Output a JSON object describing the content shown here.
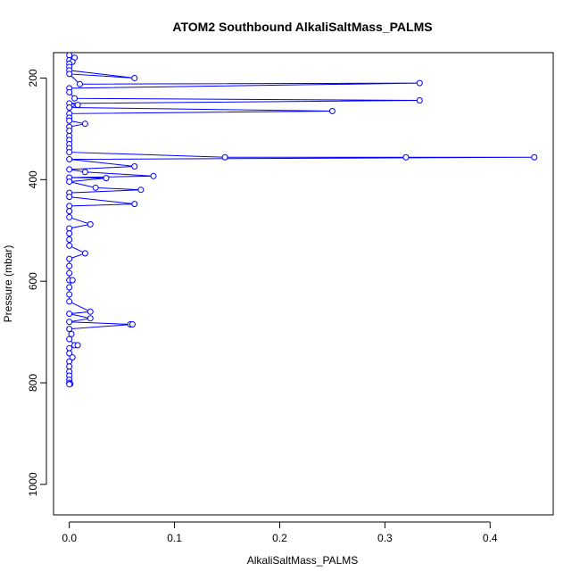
{
  "chart_data": {
    "type": "scatter",
    "title": "ATOM2 Southbound AlkaliSaltMass_PALMS",
    "xlabel": "AlkaliSaltMass_PALMS",
    "ylabel": "Pressure (mbar)",
    "xlim": [
      -0.015,
      0.46
    ],
    "ylim": [
      1060,
      150
    ],
    "y_inverted": true,
    "xticks": [
      0.0,
      0.1,
      0.2,
      0.3,
      0.4
    ],
    "xtick_labels": [
      "0.0",
      "0.1",
      "0.2",
      "0.3",
      "0.4"
    ],
    "yticks": [
      200,
      400,
      600,
      800,
      1000
    ],
    "ytick_labels": [
      "200",
      "400",
      "600",
      "800",
      "1000"
    ],
    "grid": false,
    "legend": "none",
    "series": [
      {
        "color": "#0000ff",
        "line": true,
        "marker": "open-circle",
        "points": [
          [
            0.0,
            155
          ],
          [
            0.005,
            160
          ],
          [
            0.0,
            165
          ],
          [
            0.003,
            168
          ],
          [
            0.0,
            172
          ],
          [
            0.0,
            178
          ],
          [
            0.0,
            185
          ],
          [
            0.062,
            200
          ],
          [
            0.0,
            192
          ],
          [
            0.01,
            212
          ],
          [
            0.333,
            210
          ],
          [
            0.0,
            220
          ],
          [
            0.0,
            228
          ],
          [
            0.005,
            240
          ],
          [
            0.333,
            244
          ],
          [
            0.0,
            250
          ],
          [
            0.008,
            253
          ],
          [
            0.0,
            258
          ],
          [
            0.25,
            265
          ],
          [
            0.0,
            270
          ],
          [
            0.0,
            278
          ],
          [
            0.0,
            284
          ],
          [
            0.015,
            290
          ],
          [
            0.0,
            296
          ],
          [
            0.0,
            304
          ],
          [
            0.0,
            314
          ],
          [
            0.0,
            322
          ],
          [
            0.0,
            330
          ],
          [
            0.0,
            338
          ],
          [
            0.0,
            346
          ],
          [
            0.148,
            356
          ],
          [
            0.32,
            356
          ],
          [
            0.442,
            356
          ],
          [
            0.0,
            360
          ],
          [
            0.062,
            374
          ],
          [
            0.0,
            380
          ],
          [
            0.015,
            385
          ],
          [
            0.08,
            393
          ],
          [
            0.0,
            396
          ],
          [
            0.035,
            397
          ],
          [
            0.0,
            404
          ],
          [
            0.025,
            416
          ],
          [
            0.068,
            420
          ],
          [
            0.0,
            426
          ],
          [
            0.0,
            434
          ],
          [
            0.062,
            448
          ],
          [
            0.0,
            452
          ],
          [
            0.0,
            462
          ],
          [
            0.0,
            474
          ],
          [
            0.02,
            488
          ],
          [
            0.0,
            496
          ],
          [
            0.0,
            506
          ],
          [
            0.0,
            518
          ],
          [
            0.0,
            530
          ],
          [
            0.015,
            545
          ],
          [
            0.0,
            556
          ],
          [
            0.0,
            570
          ],
          [
            0.0,
            584
          ],
          [
            0.0,
            598
          ],
          [
            0.003,
            598
          ],
          [
            0.0,
            612
          ],
          [
            0.0,
            626
          ],
          [
            0.0,
            640
          ],
          [
            0.02,
            660
          ],
          [
            0.0,
            664
          ],
          [
            0.02,
            673
          ],
          [
            0.0,
            680
          ],
          [
            0.058,
            685
          ],
          [
            0.06,
            685
          ],
          [
            0.0,
            694
          ],
          [
            0.002,
            704
          ],
          [
            0.0,
            714
          ],
          [
            0.005,
            726
          ],
          [
            0.008,
            726
          ],
          [
            0.0,
            732
          ],
          [
            0.0,
            742
          ],
          [
            0.003,
            750
          ],
          [
            0.0,
            758
          ],
          [
            0.0,
            768
          ],
          [
            0.0,
            778
          ],
          [
            0.0,
            786
          ],
          [
            0.0,
            794
          ],
          [
            0.0,
            800
          ],
          [
            0.001,
            802
          ],
          [
            0.0,
            803
          ]
        ]
      }
    ]
  }
}
